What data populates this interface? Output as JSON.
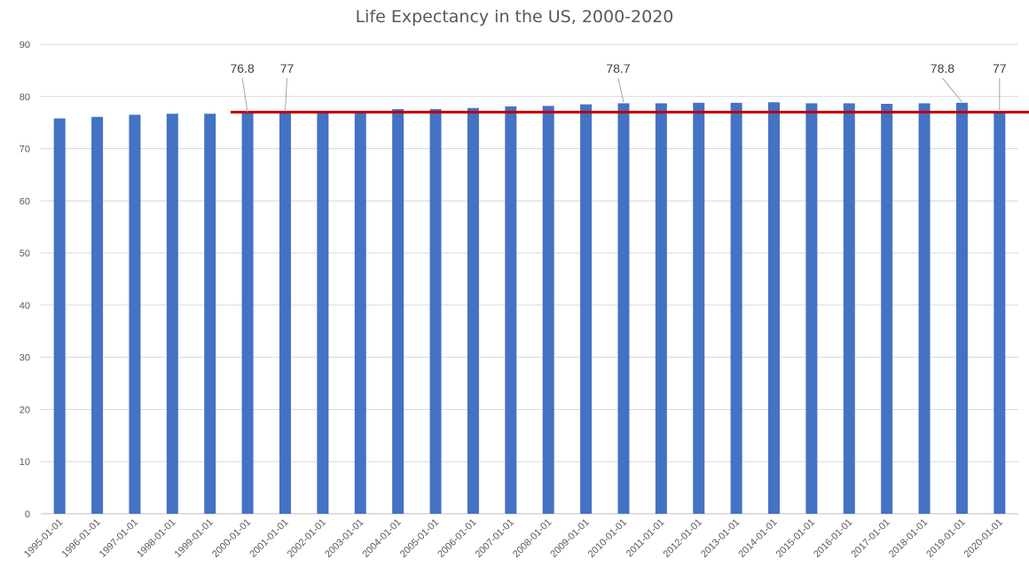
{
  "chart_data": {
    "type": "bar",
    "title": "Life Expectancy in the US, 2000-2020",
    "xlabel": "",
    "ylabel": "",
    "ylim": [
      0,
      90
    ],
    "yticks": [
      0,
      10,
      20,
      30,
      40,
      50,
      60,
      70,
      80,
      90
    ],
    "grid": true,
    "categories": [
      "1995-01-01",
      "1996-01-01",
      "1997-01-01",
      "1998-01-01",
      "1999-01-01",
      "2000-01-01",
      "2001-01-01",
      "2002-01-01",
      "2003-01-01",
      "2004-01-01",
      "2005-01-01",
      "2006-01-01",
      "2007-01-01",
      "2008-01-01",
      "2009-01-01",
      "2010-01-01",
      "2011-01-01",
      "2012-01-01",
      "2013-01-01",
      "2014-01-01",
      "2015-01-01",
      "2016-01-01",
      "2017-01-01",
      "2018-01-01",
      "2019-01-01",
      "2020-01-01"
    ],
    "values": [
      75.8,
      76.1,
      76.5,
      76.7,
      76.7,
      76.8,
      77.0,
      77.0,
      77.1,
      77.6,
      77.6,
      77.8,
      78.1,
      78.2,
      78.5,
      78.7,
      78.7,
      78.8,
      78.8,
      78.9,
      78.7,
      78.7,
      78.6,
      78.7,
      78.8,
      77.0
    ],
    "bar_color": "#4472C4",
    "reference_line": {
      "value": 77,
      "from_category": "2000-01-01",
      "color": "#C00000"
    },
    "annotations": [
      {
        "category": "2000-01-01",
        "label": "76.8"
      },
      {
        "category": "2001-01-01",
        "label": "77"
      },
      {
        "category": "2010-01-01",
        "label": "78.7"
      },
      {
        "category": "2019-01-01",
        "label": "78.8"
      },
      {
        "category": "2020-01-01",
        "label": "77"
      }
    ]
  }
}
